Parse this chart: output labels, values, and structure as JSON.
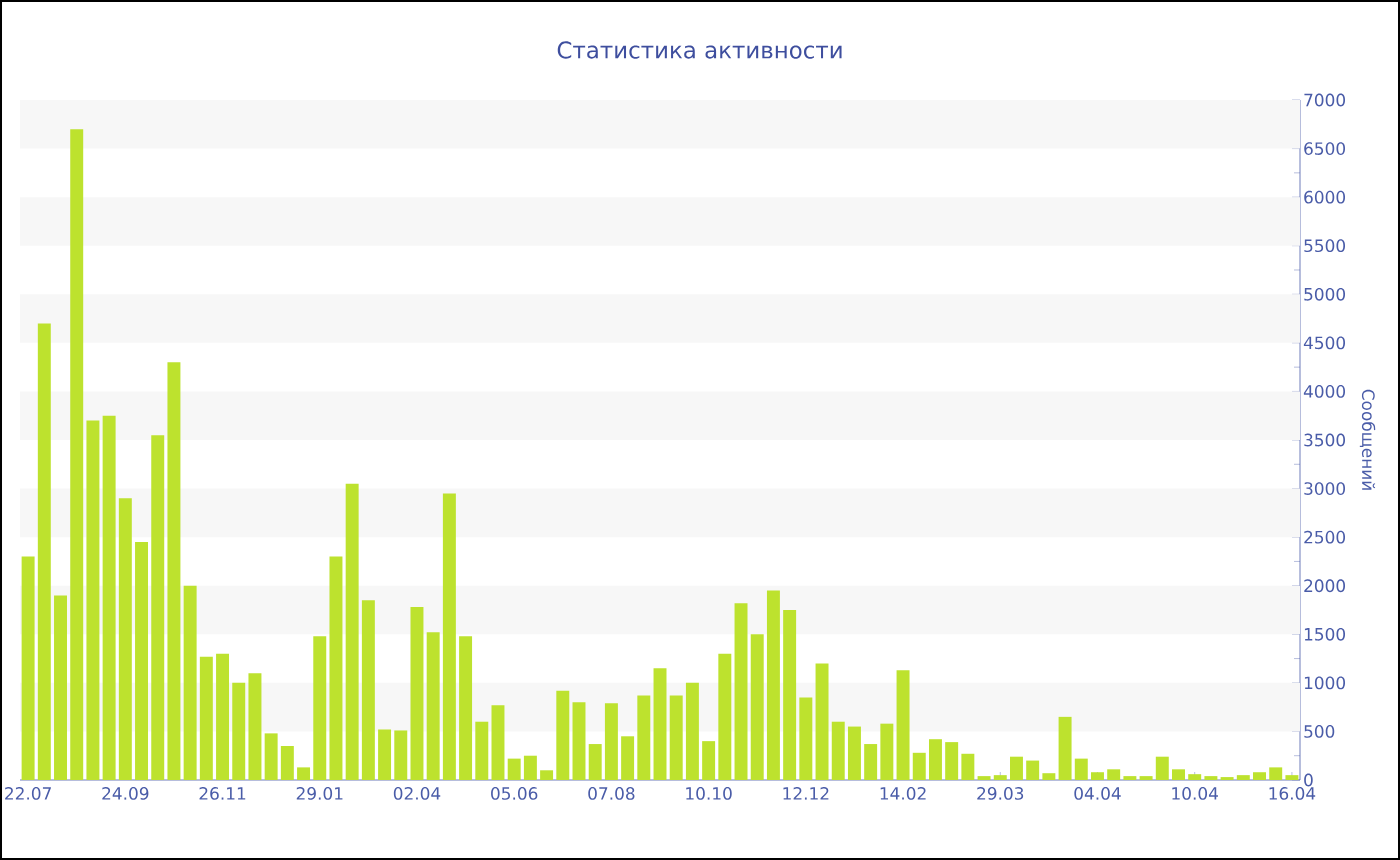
{
  "chart_data": {
    "type": "bar",
    "title": "Статистика активности",
    "ylabel": "Сообщений",
    "categories": [
      "22.07",
      null,
      null,
      null,
      null,
      null,
      "24.09",
      null,
      null,
      null,
      null,
      null,
      "26.11",
      null,
      null,
      null,
      null,
      null,
      "29.01",
      null,
      null,
      null,
      null,
      null,
      "02.04",
      null,
      null,
      null,
      null,
      null,
      "05.06",
      null,
      null,
      null,
      null,
      null,
      "07.08",
      null,
      null,
      null,
      null,
      null,
      "10.10",
      null,
      null,
      null,
      null,
      null,
      "12.12",
      null,
      null,
      null,
      null,
      null,
      "14.02",
      null,
      null,
      null,
      null,
      null,
      "29.03",
      null,
      null,
      null,
      null,
      null,
      "04.04",
      null,
      null,
      null,
      null,
      null,
      "10.04",
      null,
      null,
      null,
      null,
      null,
      "16.04"
    ],
    "values": [
      2300,
      4700,
      1900,
      6700,
      3700,
      3750,
      2900,
      2450,
      3550,
      4300,
      2000,
      1270,
      1300,
      1000,
      1100,
      480,
      350,
      130,
      1480,
      2300,
      3050,
      1850,
      520,
      510,
      1780,
      1520,
      2950,
      1480,
      600,
      770,
      220,
      250,
      100,
      920,
      800,
      370,
      790,
      450,
      870,
      1150,
      870,
      1000,
      400,
      1300,
      1820,
      1500,
      1950,
      1750,
      850,
      1200,
      600,
      550,
      370,
      580,
      1130,
      280,
      420,
      390,
      270,
      40,
      50,
      240,
      200,
      70,
      650,
      220,
      80,
      110,
      40,
      40,
      240,
      110,
      60,
      40,
      30,
      50,
      80,
      130,
      50
    ],
    "color": "#bde22e",
    "ylim": [
      0,
      7000
    ],
    "yticks": [
      0,
      500,
      1000,
      1500,
      2000,
      2500,
      3000,
      3500,
      4000,
      4500,
      5000,
      5500,
      6000,
      6500,
      7000
    ],
    "bands": [
      {
        "axis": "y",
        "from": 500,
        "to": 1000,
        "color": "#f7f7f7"
      },
      {
        "axis": "y",
        "from": 1500,
        "to": 2000,
        "color": "#f7f7f7"
      },
      {
        "axis": "y",
        "from": 2500,
        "to": 3000,
        "color": "#f7f7f7"
      },
      {
        "axis": "y",
        "from": 3500,
        "to": 4000,
        "color": "#f7f7f7"
      },
      {
        "axis": "y",
        "from": 4500,
        "to": 5000,
        "color": "#f7f7f7"
      },
      {
        "axis": "y",
        "from": 5500,
        "to": 6000,
        "color": "#f7f7f7"
      },
      {
        "axis": "y",
        "from": 6500,
        "to": 7000,
        "color": "#f7f7f7"
      }
    ]
  }
}
